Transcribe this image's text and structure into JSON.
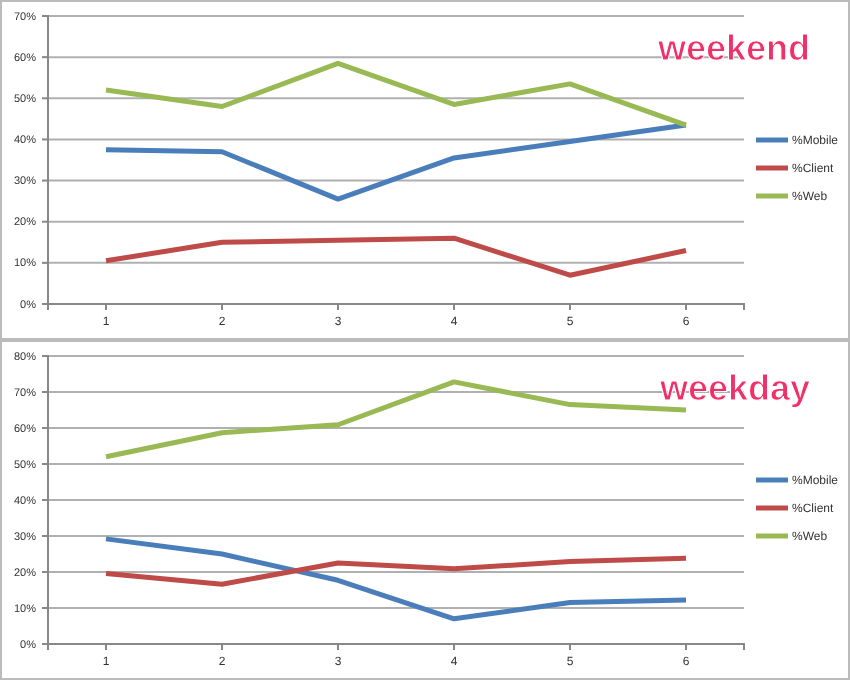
{
  "chart_data": [
    {
      "type": "line",
      "title": "weekend",
      "categories": [
        "1",
        "2",
        "3",
        "4",
        "5",
        "6"
      ],
      "series": [
        {
          "name": "%Mobile",
          "color": "#4a7ebb",
          "values": [
            37.5,
            37,
            25.5,
            35.5,
            39.5,
            43.5
          ]
        },
        {
          "name": "%Client",
          "color": "#be4b48",
          "values": [
            10.5,
            15,
            15.5,
            16,
            7,
            13
          ]
        },
        {
          "name": "%Web",
          "color": "#98b954",
          "values": [
            52,
            48,
            58.5,
            48.5,
            53.5,
            43.5
          ]
        }
      ],
      "ylim": [
        0,
        70
      ],
      "yticks": [
        {
          "value": 0,
          "label": "0%"
        },
        {
          "value": 10,
          "label": "10%"
        },
        {
          "value": 20,
          "label": "20%"
        },
        {
          "value": 30,
          "label": "30%"
        },
        {
          "value": 40,
          "label": "40%"
        },
        {
          "value": 50,
          "label": "50%"
        },
        {
          "value": 60,
          "label": "60%"
        },
        {
          "value": 70,
          "label": "70%"
        }
      ],
      "grid": "y",
      "legend": "right"
    },
    {
      "type": "line",
      "title": "weekday",
      "categories": [
        "1",
        "2",
        "3",
        "4",
        "5",
        "6"
      ],
      "series": [
        {
          "name": "%Mobile",
          "color": "#4a7ebb",
          "values": [
            29.2,
            25,
            17.7,
            7,
            11.5,
            12.2
          ]
        },
        {
          "name": "%Client",
          "color": "#be4b48",
          "values": [
            19.6,
            16.6,
            22.5,
            20.9,
            22.9,
            23.8
          ]
        },
        {
          "name": "%Web",
          "color": "#98b954",
          "values": [
            52,
            58.7,
            60.9,
            72.8,
            66.5,
            65
          ]
        }
      ],
      "ylim": [
        0,
        80
      ],
      "yticks": [
        {
          "value": 0,
          "label": "0%"
        },
        {
          "value": 10,
          "label": "10%"
        },
        {
          "value": 20,
          "label": "20%"
        },
        {
          "value": 30,
          "label": "30%"
        },
        {
          "value": 40,
          "label": "40%"
        },
        {
          "value": 50,
          "label": "50%"
        },
        {
          "value": 60,
          "label": "60%"
        },
        {
          "value": 70,
          "label": "70%"
        },
        {
          "value": 80,
          "label": "80%"
        }
      ],
      "grid": "y",
      "legend": "right"
    }
  ]
}
